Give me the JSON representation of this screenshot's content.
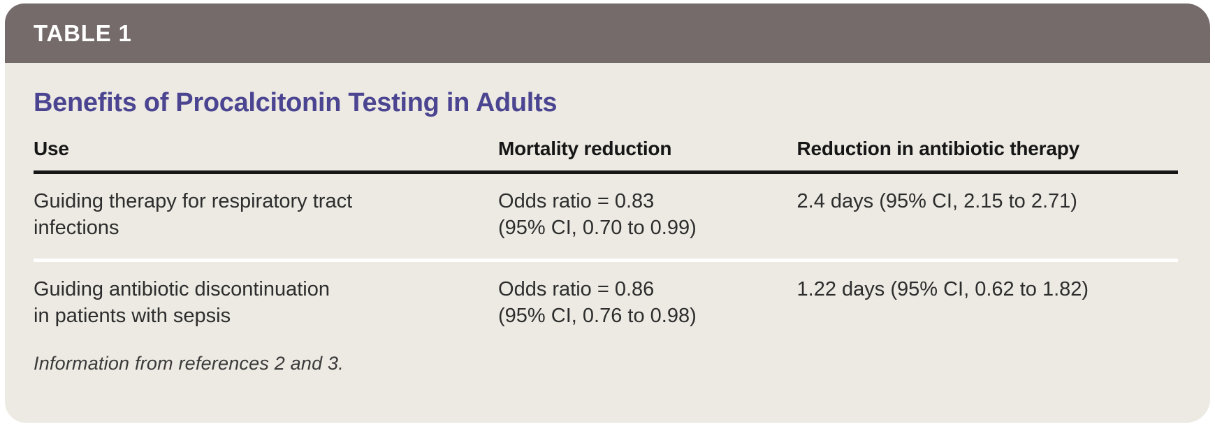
{
  "colors": {
    "tab_bar_bg": "#756b6b",
    "tab_label": "#ffffff",
    "card_body_bg": "#edeae3",
    "title_purple": "#4b4591",
    "header_rule_black": "#161616",
    "row_separator_white": "#ffffff",
    "body_text": "#2d2d2d",
    "page_bg": "#ffffff"
  },
  "tab": {
    "label": "TABLE 1"
  },
  "title": "Benefits of Procalcitonin Testing in Adults",
  "table": {
    "headers": [
      "Use",
      "Mortality reduction",
      "Reduction in antibiotic therapy"
    ],
    "rows": [
      {
        "use": [
          "Guiding therapy for respiratory tract",
          "infections"
        ],
        "mortality": [
          "Odds ratio = 0.83",
          "(95% CI, 0.70 to 0.99)"
        ],
        "antibiotic": [
          "2.4 days (95% CI, 2.15 to 2.71)"
        ]
      },
      {
        "use": [
          "Guiding antibiotic discontinuation",
          "in patients with sepsis"
        ],
        "mortality": [
          "Odds ratio = 0.86",
          "(95% CI, 0.76 to 0.98)"
        ],
        "antibiotic": [
          "1.22 days (95% CI, 0.62 to 1.82)"
        ]
      }
    ]
  },
  "footnote": "Information from references 2 and 3."
}
